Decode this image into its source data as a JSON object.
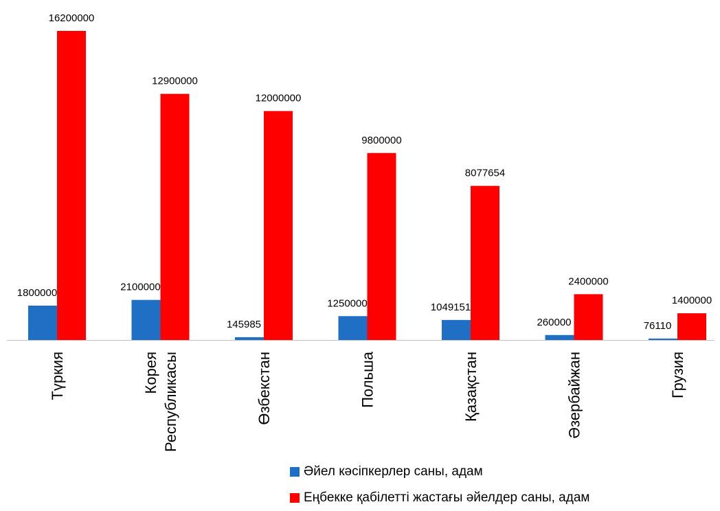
{
  "chart_data": {
    "type": "bar",
    "categories": [
      [
        "Түркия"
      ],
      [
        "Корея",
        "Республикасы"
      ],
      [
        "Өзбекстан"
      ],
      [
        "Польша"
      ],
      [
        "Қазақстан"
      ],
      [
        "Әзербайжан"
      ],
      [
        "Грузия"
      ]
    ],
    "series": [
      {
        "name": "Әйел кәсіпкерлер саны, адам",
        "color": "#1f6fc5",
        "values": [
          1800000,
          2100000,
          145985,
          1250000,
          1049151,
          260000,
          76110
        ]
      },
      {
        "name": "Еңбекке қабілетті жастағы әйелдер саны, адам",
        "color": "#ff0000",
        "values": [
          16200000,
          12900000,
          12000000,
          9800000,
          8077654,
          2400000,
          1400000
        ]
      }
    ],
    "ylim": [
      0,
      16200000
    ],
    "grid": false,
    "legend_position": "bottom-right",
    "data_labels": true
  }
}
